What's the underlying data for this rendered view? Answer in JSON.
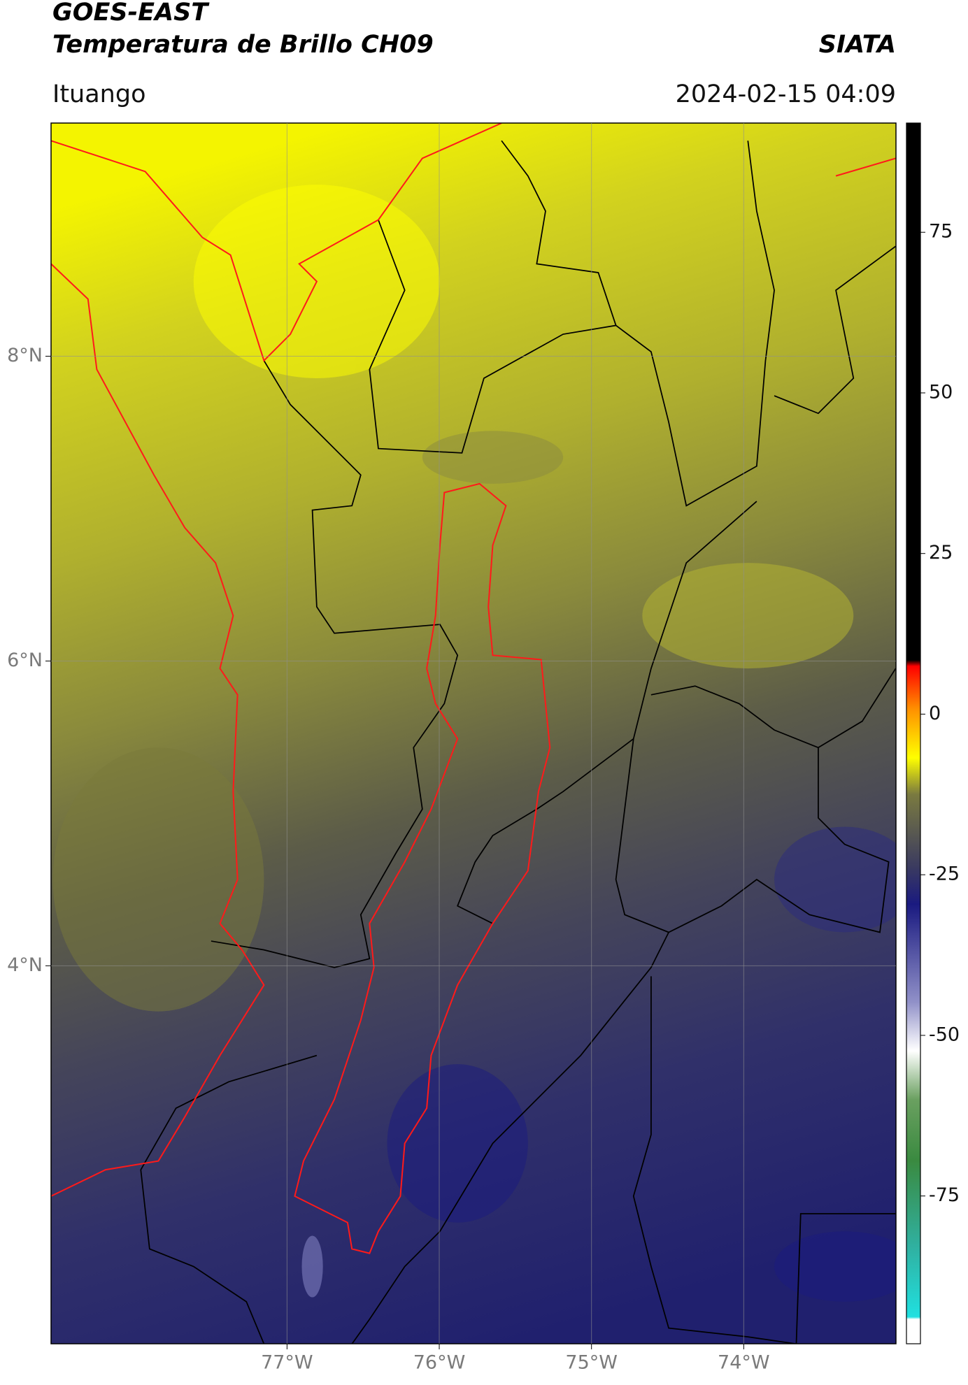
{
  "header": {
    "title_line1": "GOES-EAST",
    "title_line2": "Temperatura de Brillo CH09",
    "source": "SIATA",
    "region": "Ituango",
    "datetime": "2024-02-15 04:09"
  },
  "map": {
    "lonlim": [
      -78.55,
      -73.0
    ],
    "latlim": [
      1.52,
      9.53
    ],
    "lon_ticks": [
      {
        "value": -77,
        "label": "77°W"
      },
      {
        "value": -76,
        "label": "76°W"
      },
      {
        "value": -75,
        "label": "75°W"
      },
      {
        "value": -74,
        "label": "74°W"
      }
    ],
    "lat_ticks": [
      {
        "value": 8,
        "label": "8°N"
      },
      {
        "value": 6,
        "label": "6°N"
      },
      {
        "value": 4,
        "label": "4°N"
      }
    ]
  },
  "colorbar": {
    "limits": [
      -98,
      92
    ],
    "ticks": [
      75,
      50,
      25,
      0,
      -25,
      -50,
      -75
    ]
  }
}
